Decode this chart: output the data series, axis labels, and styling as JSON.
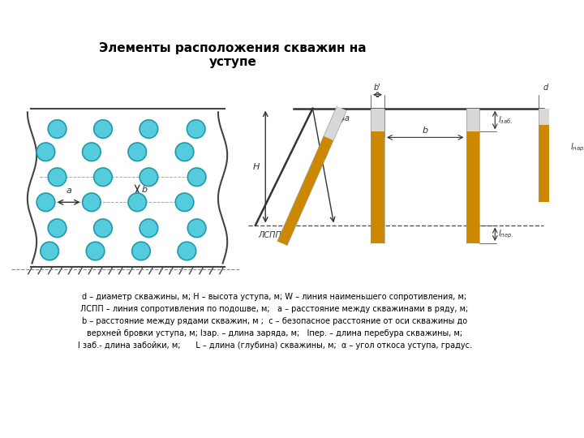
{
  "title": "Элементы расположения скважин на\nуступе",
  "bg_color": "#ffffff",
  "circle_color": "#55ccdd",
  "drill_orange": "#cc8800",
  "caption_lines": [
    "d – диаметр скважины, м; H – высота уступа, м; W – линия наименьшего сопротивления, м;",
    "ЛСПП – линия сопротивления по подошве, м;   a – расстояние между скважинами в ряду, м;",
    "b – расстояние между рядами скважин, м ;  c – безопасное расстояние от оси скважины до",
    "верхней бровки уступа, м; lзар. – длина заряда, м;   lпер. – длина перебура скважины, м;",
    "l заб.- длина забойки, м;      L – длина (глубина) скважины, м;  α – угол откоса уступа, градус."
  ]
}
